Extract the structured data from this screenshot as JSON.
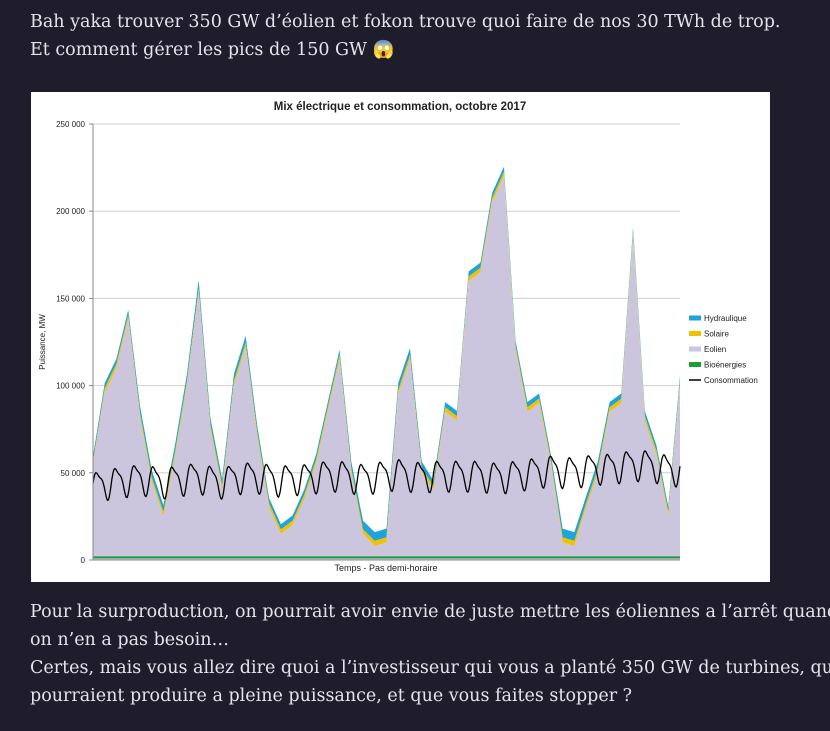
{
  "post": {
    "top_line1": "Bah yaka trouver 350 GW d’éolien et fokon trouve quoi faire de nos 30 TWh de trop.",
    "top_line2": "Et comment gérer les pics de 150 GW",
    "top_emoji": "😱",
    "bottom_line1": "Pour la surproduction, on pourrait avoir envie de juste mettre les éoliennes a l’arrêt quand",
    "bottom_line2": "on n’en a pas besoin…",
    "bottom_line3": "Certes, mais vous allez dire quoi a l’investisseur qui vous a planté 350 GW de turbines, qui",
    "bottom_line4": "pourraient produire a pleine puissance, et que vous faites stopper ?"
  },
  "chart_data": {
    "type": "area",
    "title": "Mix électrique et consommation, octobre 2017",
    "xlabel": "Temps - Pas demi-horaire",
    "ylabel": "Puissance, MW",
    "ylim": [
      0,
      250000
    ],
    "yticks": [
      0,
      50000,
      100000,
      150000,
      200000,
      250000
    ],
    "ytick_labels": [
      "0",
      "50 000",
      "100 000",
      "150 000",
      "200 000",
      "250 000"
    ],
    "legend_position": "right",
    "colors": {
      "Hydraulique": "#1fa3dc",
      "Solaire": "#f2c200",
      "Eolien": "#cbc5dd",
      "Bioénergies": "#1a9e3a",
      "Consommation": "#000000"
    },
    "series_order": [
      "Hydraulique",
      "Solaire",
      "Eolien",
      "Bioénergies",
      "Consommation"
    ],
    "legend_labels": [
      "Hydraulique",
      "Solaire",
      "Eolien",
      "Bioénergies",
      "Consommation"
    ],
    "x_index": [
      0,
      2,
      4,
      6,
      8,
      10,
      12,
      14,
      16,
      18,
      20,
      22,
      24,
      26,
      28,
      30,
      32,
      34,
      36,
      38,
      40,
      42,
      44,
      46,
      48,
      50,
      52,
      54,
      56,
      58,
      60,
      62,
      64,
      66,
      68,
      70,
      72,
      74,
      76,
      78,
      80,
      82,
      84,
      86,
      88,
      90,
      92,
      94,
      96,
      98,
      100
    ],
    "eolien_top": [
      55000,
      96000,
      110000,
      138000,
      82000,
      45000,
      25000,
      60000,
      100000,
      153000,
      75000,
      40000,
      100000,
      122000,
      70000,
      30000,
      15000,
      20000,
      35000,
      55000,
      85000,
      115000,
      50000,
      15000,
      8000,
      10000,
      95000,
      115000,
      50000,
      40000,
      85000,
      80000,
      160000,
      165000,
      205000,
      220000,
      120000,
      85000,
      90000,
      55000,
      10000,
      8000,
      30000,
      50000,
      85000,
      90000,
      185000,
      80000,
      60000,
      25000,
      100000
    ],
    "hydro_thickness": [
      3000,
      3000,
      3000,
      3000,
      4000,
      4000,
      4000,
      4000,
      4000,
      5000,
      4000,
      4000,
      4000,
      4000,
      4000,
      3000,
      3000,
      3000,
      3000,
      3000,
      3000,
      3000,
      4000,
      5000,
      5000,
      5000,
      4000,
      4000,
      4000,
      3000,
      3000,
      3000,
      3000,
      3000,
      3000,
      3000,
      3000,
      3000,
      3000,
      3000,
      5000,
      5000,
      4000,
      4000,
      3000,
      3000,
      3000,
      3000,
      3000,
      3000,
      3000
    ],
    "solar_thickness": [
      1500,
      2500,
      2500,
      2500,
      2500,
      2500,
      2500,
      2500,
      2500,
      2500,
      2500,
      2500,
      2500,
      2500,
      2500,
      2500,
      2500,
      2500,
      2500,
      2500,
      2500,
      2500,
      2500,
      2500,
      3000,
      3000,
      2500,
      2500,
      2500,
      2500,
      2500,
      2500,
      2500,
      2500,
      2500,
      2500,
      2500,
      2500,
      2500,
      2500,
      3000,
      3000,
      2500,
      2500,
      2500,
      2500,
      2500,
      2500,
      2500,
      2500,
      2500
    ],
    "bioenergies_level": 1500,
    "consommation": {
      "base": [
        42000,
        44000,
        45000,
        46000,
        47000,
        46000,
        45000,
        46000,
        47000,
        48000,
        46000,
        45000,
        47000,
        48000,
        48000,
        47000,
        46000,
        47000,
        47000,
        48000,
        49000,
        49000,
        48000,
        47000,
        48000,
        49000,
        50000,
        49000,
        48000,
        49000,
        49000,
        49000,
        49000,
        49000,
        48000,
        48000,
        49000,
        50000,
        51000,
        52000,
        51000,
        51000,
        52000,
        53000,
        53000,
        54000,
        55000,
        55000,
        54000,
        52000,
        52000
      ],
      "daily_amplitude": 8000,
      "days": 31
    }
  }
}
